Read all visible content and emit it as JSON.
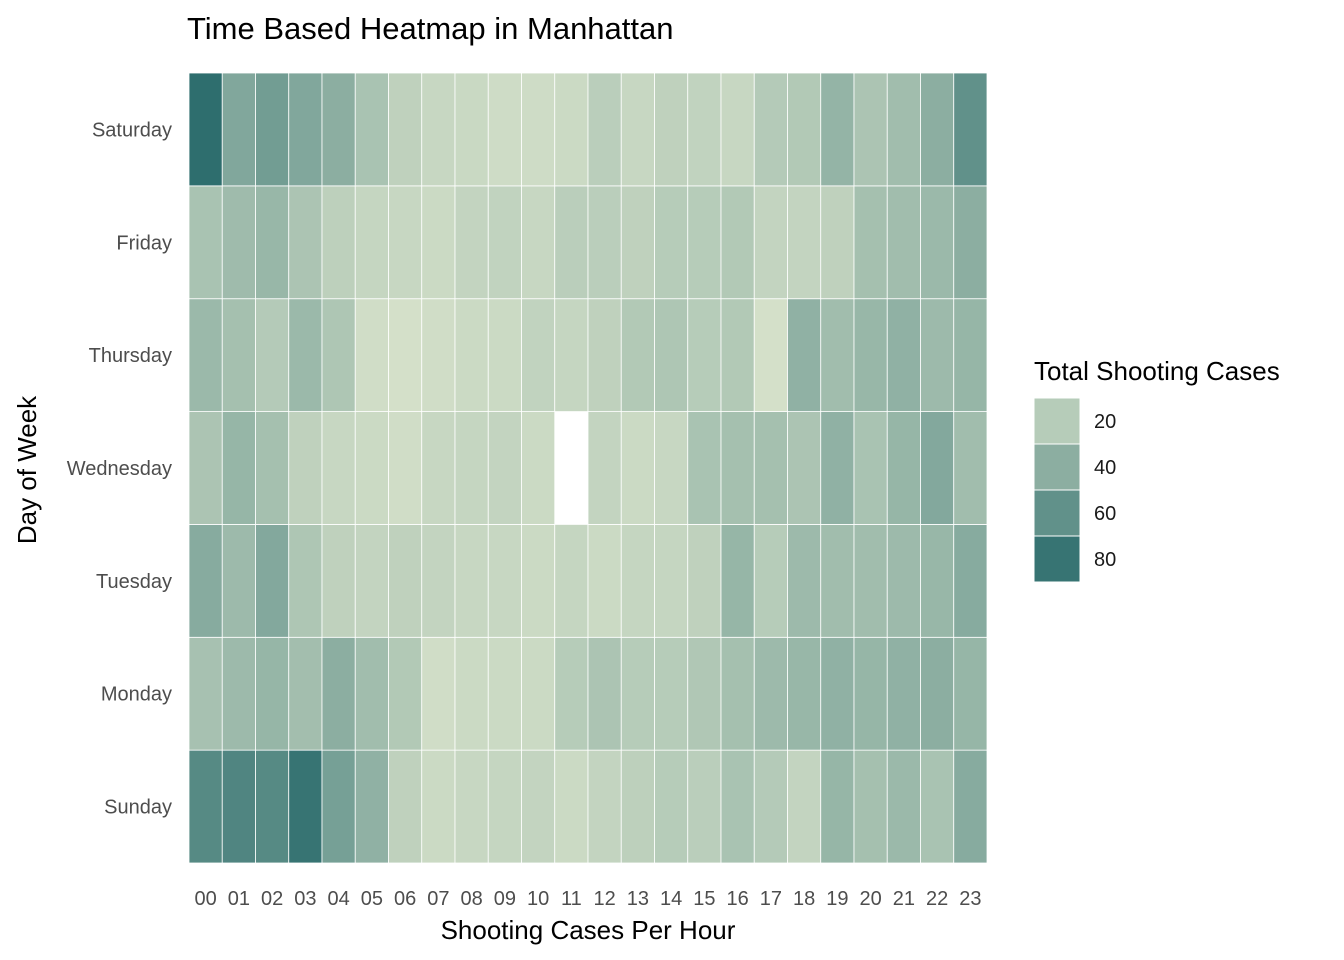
{
  "chart_data": {
    "type": "heatmap",
    "title": "Time Based Heatmap in Manhattan",
    "xlabel": "Shooting Cases Per Hour",
    "ylabel": "Day of Week",
    "x_categories": [
      "00",
      "01",
      "02",
      "03",
      "04",
      "05",
      "06",
      "07",
      "08",
      "09",
      "10",
      "11",
      "12",
      "13",
      "14",
      "15",
      "16",
      "17",
      "18",
      "19",
      "20",
      "21",
      "22",
      "23"
    ],
    "y_categories": [
      "Sunday",
      "Monday",
      "Tuesday",
      "Wednesday",
      "Thursday",
      "Friday",
      "Saturday"
    ],
    "values": [
      [
        65,
        68,
        65,
        80,
        50,
        38,
        16,
        10,
        12,
        13,
        14,
        10,
        14,
        17,
        20,
        18,
        26,
        21,
        14,
        35,
        28,
        33,
        26,
        42
      ],
      [
        27,
        32,
        35,
        29,
        40,
        30,
        22,
        8,
        10,
        10,
        10,
        20,
        25,
        20,
        20,
        23,
        28,
        32,
        34,
        38,
        35,
        38,
        40,
        35
      ],
      [
        42,
        32,
        44,
        24,
        16,
        14,
        16,
        14,
        12,
        12,
        10,
        13,
        10,
        13,
        13,
        16,
        35,
        20,
        32,
        30,
        30,
        32,
        34,
        42
      ],
      [
        25,
        35,
        28,
        16,
        12,
        10,
        8,
        12,
        13,
        14,
        10,
        null,
        14,
        10,
        12,
        26,
        28,
        28,
        25,
        38,
        26,
        35,
        44,
        30
      ],
      [
        33,
        28,
        21,
        33,
        24,
        8,
        6,
        8,
        10,
        10,
        15,
        13,
        16,
        22,
        24,
        20,
        22,
        6,
        38,
        30,
        34,
        38,
        32,
        35
      ],
      [
        26,
        31,
        34,
        25,
        17,
        13,
        12,
        10,
        14,
        15,
        12,
        18,
        18,
        16,
        20,
        20,
        22,
        14,
        14,
        16,
        28,
        30,
        33,
        40
      ],
      [
        84,
        45,
        52,
        45,
        40,
        26,
        16,
        12,
        11,
        9,
        9,
        10,
        18,
        12,
        16,
        15,
        12,
        21,
        22,
        36,
        25,
        30,
        40,
        60
      ]
    ],
    "legend": {
      "title": "Total Shooting Cases",
      "breaks": [
        20,
        40,
        60,
        80
      ],
      "low_color": "#d4e0c9",
      "high_color": "#2e6e6e",
      "missing_color": "#ffffff"
    },
    "grid": false,
    "legend_position": "right"
  }
}
